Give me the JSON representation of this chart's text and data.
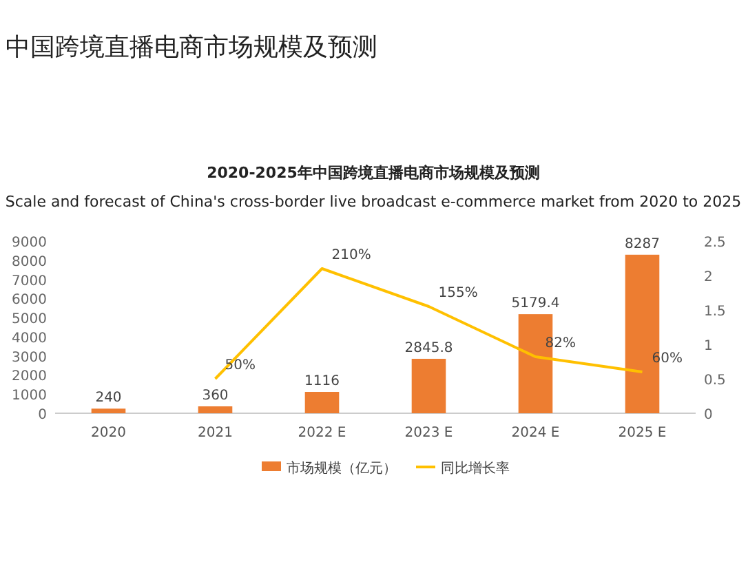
{
  "chart_data": {
    "type": "bar",
    "title": "中国跨境直播电商市场规模及预测",
    "subtitle": "2020-2025年中国跨境直播电商市场规模及预测",
    "annotations": [
      "Scale and forecast of China's cross-border live broadcast e-commerce market from 2020 to 2025"
    ],
    "categories": [
      "2020",
      "2021",
      "2022 E",
      "2023 E",
      "2024 E",
      "2025 E"
    ],
    "series": [
      {
        "name": "市场规模（亿元）",
        "color": "#ed7d31",
        "values": [
          240,
          360,
          1116,
          2845.8,
          5179.4,
          8287
        ],
        "data_labels": true
      },
      {
        "name": "同比增长率",
        "type": "line",
        "axis": "y2",
        "color": "#ffc000",
        "values": [
          null,
          0.5,
          2.1,
          1.55,
          0.82,
          0.6
        ],
        "value_labels": [
          null,
          "50%",
          "210%",
          "155%",
          "82%",
          "60%"
        ]
      }
    ],
    "ylim": [
      0,
      9000
    ],
    "yticks": [
      0,
      1000,
      2000,
      3000,
      4000,
      5000,
      6000,
      7000,
      8000,
      9000
    ],
    "y2lim": [
      0,
      2.5
    ],
    "y2ticks": [
      0,
      0.5,
      1,
      1.5,
      2,
      2.5
    ],
    "grid": false,
    "legend": "bottom"
  }
}
